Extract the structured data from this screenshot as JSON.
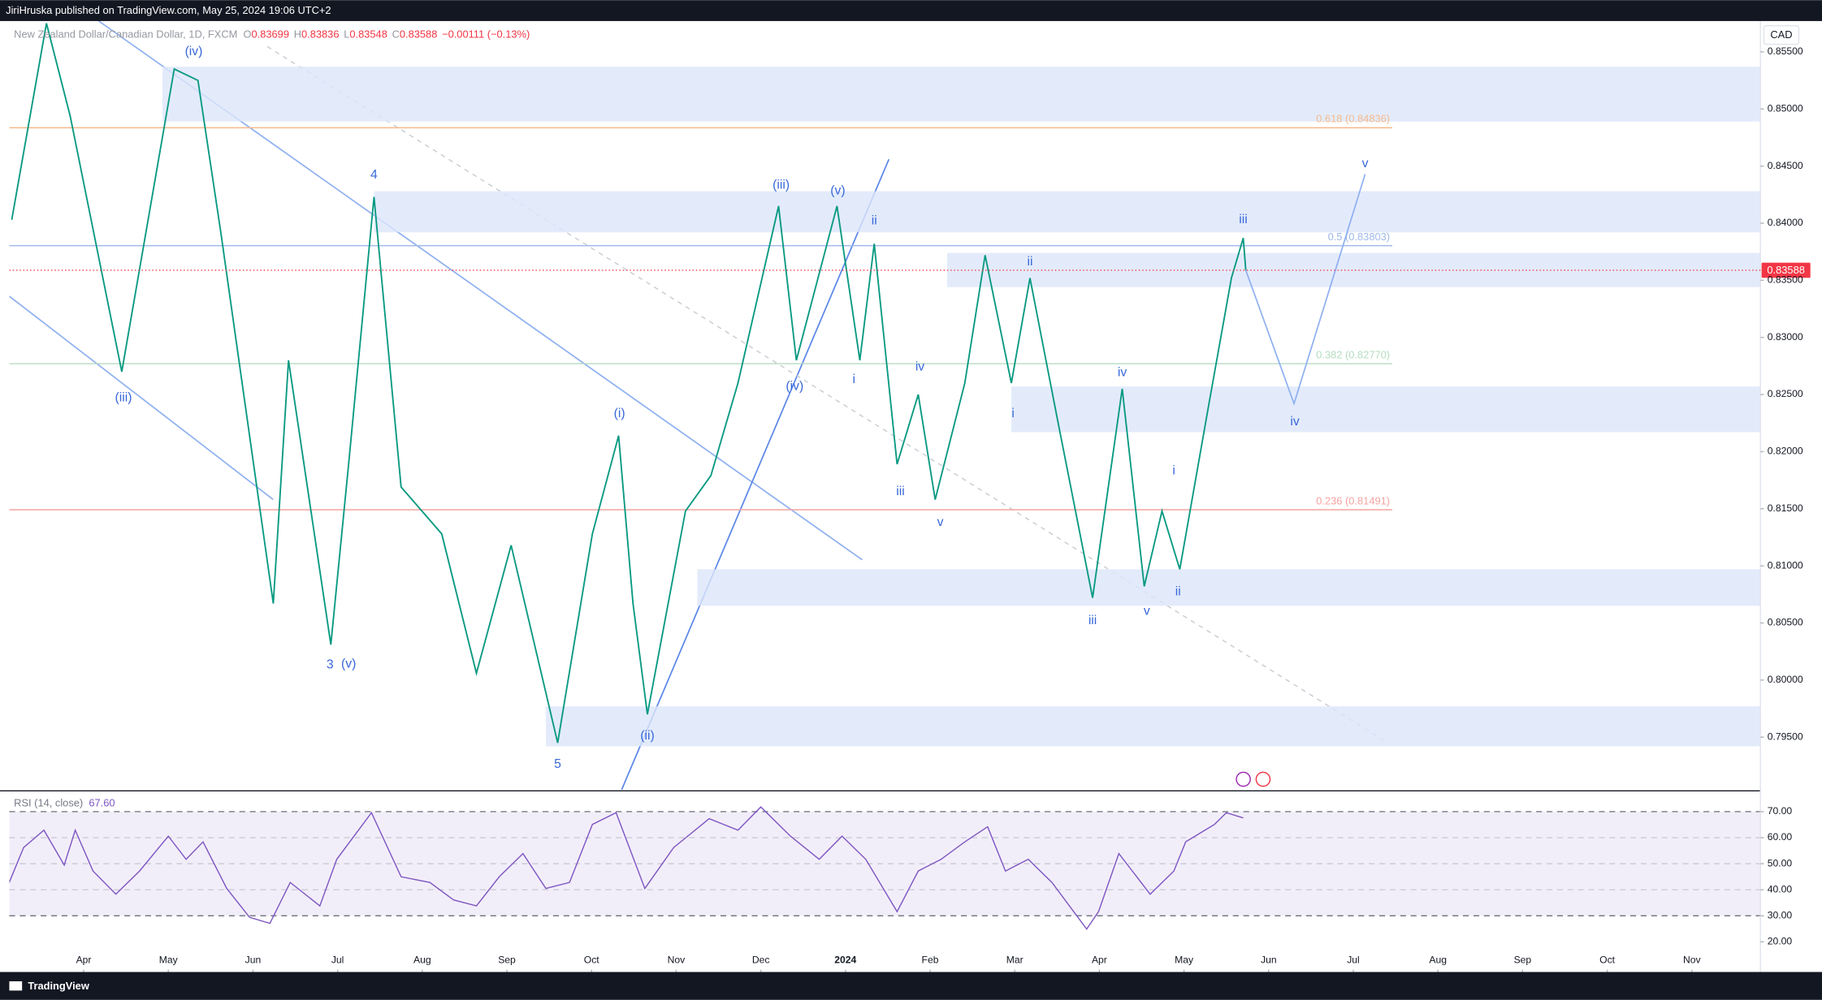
{
  "header": {
    "publisher": "JiriHruska published on TradingView.com, May 25, 2024 19:06 UTC+2",
    "symbol": "New Zealand Dollar/Canadian Dollar, 1D, FXCM",
    "quote": [
      {
        "label": "O",
        "value": 0.83699
      },
      {
        "label": "H",
        "value": 0.83836
      },
      {
        "label": "L",
        "value": 0.83548
      },
      {
        "label": "C",
        "value": 0.83588
      }
    ],
    "change": "−0.00111 (−0.13%)"
  },
  "currency": "CAD",
  "footer": "TradingView",
  "chart_data": [
    {
      "type": "line",
      "xlim": [
        -0.879,
        19.81
      ],
      "ylim": [
        0.7904,
        0.8577
      ],
      "yticks": [
        {
          "value": 0.855,
          "label": "0.85500"
        },
        {
          "value": 0.85,
          "label": "0.85000"
        },
        {
          "value": 0.845,
          "label": "0.84500"
        },
        {
          "value": 0.84,
          "label": "0.84000"
        },
        {
          "value": 0.835,
          "label": "0.83500"
        },
        {
          "value": 0.83,
          "label": "0.83000"
        },
        {
          "value": 0.825,
          "label": "0.82500"
        },
        {
          "value": 0.82,
          "label": "0.82000"
        },
        {
          "value": 0.815,
          "label": "0.81500"
        },
        {
          "value": 0.81,
          "label": "0.81000"
        },
        {
          "value": 0.805,
          "label": "0.80500"
        },
        {
          "value": 0.8,
          "label": "0.80000"
        },
        {
          "value": 0.795,
          "label": "0.79500"
        }
      ],
      "last_price": 0.83588,
      "series": [
        {
          "color": "#089981",
          "x": [
            -0.85,
            -0.44,
            -0.16,
            0.45,
            1.07,
            1.35,
            1.62,
            2.24,
            2.42,
            2.92,
            3.13,
            3.43,
            3.75,
            4.23,
            4.64,
            5.05,
            5.6,
            6.01,
            6.32,
            6.49,
            6.66,
            7.11,
            7.41,
            7.73,
            8.21,
            8.42,
            8.9,
            9.17,
            9.34,
            9.61,
            9.86,
            10.06,
            10.41,
            10.65,
            10.96,
            11.18,
            11.5,
            11.92,
            12.27,
            12.53,
            12.74,
            12.95,
            13.29,
            13.56,
            13.7,
            13.73
          ],
          "values": [
            0.8403,
            0.8575,
            0.8494,
            0.827,
            0.8535,
            0.8525,
            0.8392,
            0.8067,
            0.828,
            0.8031,
            0.8189,
            0.8423,
            0.8169,
            0.8128,
            0.8006,
            0.8118,
            0.7945,
            0.8128,
            0.8214,
            0.8067,
            0.797,
            0.8148,
            0.8179,
            0.826,
            0.8415,
            0.828,
            0.8415,
            0.828,
            0.8382,
            0.8189,
            0.825,
            0.8158,
            0.826,
            0.8372,
            0.826,
            0.8352,
            0.823,
            0.8072,
            0.8255,
            0.8082,
            0.8148,
            0.8097,
            0.824,
            0.8352,
            0.8387,
            0.83588
          ]
        }
      ],
      "projection": {
        "color": "#8fb0f0",
        "x": [
          13.73,
          14.3,
          15.14
        ],
        "values": [
          0.83588,
          0.8242,
          0.8443
        ]
      },
      "zones": [
        {
          "from": 0.93,
          "low": 0.8489,
          "high": 0.8537
        },
        {
          "from": 3.43,
          "low": 0.8392,
          "high": 0.8428
        },
        {
          "from": 10.2,
          "low": 0.8344,
          "high": 0.8374
        },
        {
          "from": 10.96,
          "low": 0.8217,
          "high": 0.8257
        },
        {
          "from": 7.25,
          "low": 0.8065,
          "high": 0.8097
        },
        {
          "from": 5.46,
          "low": 0.7942,
          "high": 0.7977
        }
      ],
      "fib": {
        "to": 15.46,
        "levels": [
          {
            "name": "0.618 (0.84836)",
            "value": 0.84836,
            "color": "#f5b98c"
          },
          {
            "name": "0.5 (0.83803)",
            "value": 0.83803,
            "color": "#9fb8e8"
          },
          {
            "name": "0.382 (0.82770)",
            "value": 0.8277,
            "color": "#b5dcc0"
          },
          {
            "name": "0.236 (0.81491)",
            "value": 0.81491,
            "color": "#f4a3a0"
          }
        ]
      },
      "annotations": [
        {
          "text": "(iv)",
          "x": 1.3,
          "y": 0.855
        },
        {
          "text": "(iii)",
          "x": 0.47,
          "y": 0.8247
        },
        {
          "text": "3",
          "x": 2.91,
          "y": 0.8013
        },
        {
          "text": "(v)",
          "x": 3.13,
          "y": 0.8014
        },
        {
          "text": "4",
          "x": 3.43,
          "y": 0.8442
        },
        {
          "text": "5",
          "x": 5.6,
          "y": 0.7926
        },
        {
          "text": "(i)",
          "x": 6.33,
          "y": 0.8233
        },
        {
          "text": "(ii)",
          "x": 6.66,
          "y": 0.7951
        },
        {
          "text": "(iii)",
          "x": 8.24,
          "y": 0.8433
        },
        {
          "text": "(v)",
          "x": 8.91,
          "y": 0.8428
        },
        {
          "text": "(iv)",
          "x": 8.4,
          "y": 0.8257
        },
        {
          "text": "ii",
          "x": 9.34,
          "y": 0.8402
        },
        {
          "text": "i",
          "x": 9.1,
          "y": 0.8263
        },
        {
          "text": "iv",
          "x": 9.88,
          "y": 0.8274
        },
        {
          "text": "iii",
          "x": 9.65,
          "y": 0.8165
        },
        {
          "text": "v",
          "x": 10.12,
          "y": 0.8138
        },
        {
          "text": "ii",
          "x": 11.18,
          "y": 0.8366
        },
        {
          "text": "i",
          "x": 10.98,
          "y": 0.8233
        },
        {
          "text": "iii",
          "x": 11.92,
          "y": 0.8052
        },
        {
          "text": "iv",
          "x": 12.27,
          "y": 0.8269
        },
        {
          "text": "v",
          "x": 12.56,
          "y": 0.806
        },
        {
          "text": "ii",
          "x": 12.93,
          "y": 0.8077
        },
        {
          "text": "i",
          "x": 12.88,
          "y": 0.8183
        },
        {
          "text": "iii",
          "x": 13.7,
          "y": 0.8403
        },
        {
          "text": "iv",
          "x": 14.31,
          "y": 0.8226
        },
        {
          "text": "v",
          "x": 15.14,
          "y": 0.8452
        }
      ]
    },
    {
      "type": "line",
      "title": "RSI (14, close)",
      "xlim": [
        -0.879,
        19.81
      ],
      "ylim": [
        9.3,
        77.1
      ],
      "xticks": [
        {
          "value": 0,
          "label": "Apr"
        },
        {
          "value": 1,
          "label": "May"
        },
        {
          "value": 2,
          "label": "Jun"
        },
        {
          "value": 3,
          "label": "Jul"
        },
        {
          "value": 4,
          "label": "Aug"
        },
        {
          "value": 5,
          "label": "Sep"
        },
        {
          "value": 6,
          "label": "Oct"
        },
        {
          "value": 7,
          "label": "Nov"
        },
        {
          "value": 8,
          "label": "Dec"
        },
        {
          "value": 9,
          "label": "2024"
        },
        {
          "value": 10,
          "label": "Feb"
        },
        {
          "value": 11,
          "label": "Mar"
        },
        {
          "value": 12,
          "label": "Apr"
        },
        {
          "value": 13,
          "label": "May"
        },
        {
          "value": 14,
          "label": "Jun"
        },
        {
          "value": 15,
          "label": "Jul"
        },
        {
          "value": 16,
          "label": "Aug"
        },
        {
          "value": 17,
          "label": "Sep"
        },
        {
          "value": 18,
          "label": "Oct"
        },
        {
          "value": 19,
          "label": "Nov"
        }
      ],
      "yticks": [
        {
          "value": 70,
          "label": "70.00"
        },
        {
          "value": 60,
          "label": "60.00"
        },
        {
          "value": 50,
          "label": "50.00"
        },
        {
          "value": 40,
          "label": "40.00"
        },
        {
          "value": 30,
          "label": "30.00"
        },
        {
          "value": 20,
          "label": "20.00"
        }
      ],
      "band": [
        30,
        70
      ],
      "last": {
        "value": 67.6,
        "label": "67.60"
      },
      "series": [
        {
          "color": "#7e57c2",
          "x": [
            -0.88,
            -0.71,
            -0.47,
            -0.23,
            -0.1,
            0.11,
            0.38,
            0.66,
            1.0,
            1.21,
            1.41,
            1.69,
            1.96,
            2.2,
            2.44,
            2.79,
            2.99,
            3.4,
            3.75,
            4.09,
            4.37,
            4.64,
            4.91,
            5.19,
            5.46,
            5.74,
            6.01,
            6.29,
            6.63,
            6.97,
            7.39,
            7.73,
            8.0,
            8.35,
            8.69,
            8.96,
            9.24,
            9.61,
            9.86,
            10.13,
            10.41,
            10.68,
            10.89,
            11.16,
            11.44,
            11.85,
            11.99,
            12.23,
            12.6,
            12.88,
            13.02,
            13.36,
            13.5,
            13.7
          ],
          "values": [
            42.8,
            56.2,
            62.9,
            49.5,
            62.9,
            47.2,
            38.3,
            47.2,
            60.6,
            51.7,
            58.4,
            40.5,
            29.4,
            27.1,
            42.8,
            33.8,
            51.7,
            69.6,
            45.0,
            42.8,
            36.1,
            33.8,
            45.0,
            53.9,
            40.5,
            42.8,
            65.1,
            69.6,
            40.5,
            56.2,
            67.3,
            62.9,
            71.8,
            60.6,
            51.7,
            60.6,
            51.7,
            31.6,
            47.2,
            51.7,
            58.4,
            64.2,
            47.2,
            51.7,
            42.8,
            24.9,
            31.6,
            53.9,
            38.3,
            47.2,
            58.4,
            65.1,
            69.6,
            67.6
          ]
        }
      ]
    }
  ]
}
